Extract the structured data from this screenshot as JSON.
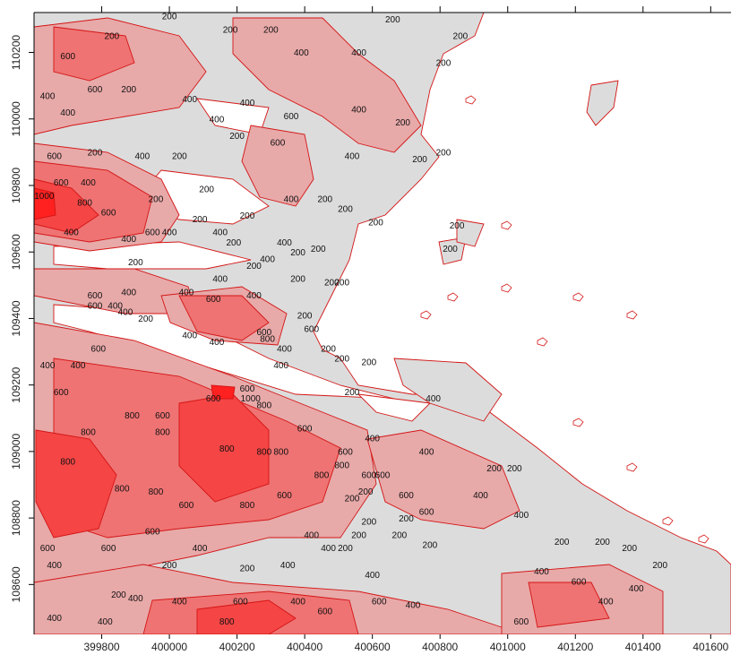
{
  "chart_data": {
    "type": "heatmap",
    "title": "",
    "xlabel": "",
    "ylabel": "",
    "xlim": [
      399600,
      401660
    ],
    "ylim": [
      108450,
      110320
    ],
    "x_ticks": [
      "399800",
      "400000",
      "400200",
      "400400",
      "400600",
      "400800",
      "401000",
      "401200",
      "401400",
      "401600"
    ],
    "y_ticks": [
      "108600",
      "108800",
      "109000",
      "109200",
      "109400",
      "109600",
      "109800",
      "110000",
      "110200"
    ],
    "contour_levels": [
      200,
      400,
      600,
      800,
      1000
    ],
    "contour_labels": [
      {
        "x": 399700,
        "y": 110180,
        "text": "600"
      },
      {
        "x": 399830,
        "y": 110240,
        "text": "200"
      },
      {
        "x": 400000,
        "y": 110300,
        "text": "200"
      },
      {
        "x": 400180,
        "y": 110260,
        "text": "200"
      },
      {
        "x": 400300,
        "y": 110260,
        "text": "200"
      },
      {
        "x": 400390,
        "y": 110190,
        "text": "400"
      },
      {
        "x": 400560,
        "y": 110190,
        "text": "400"
      },
      {
        "x": 400660,
        "y": 110290,
        "text": "200"
      },
      {
        "x": 400860,
        "y": 110240,
        "text": "200"
      },
      {
        "x": 400810,
        "y": 110160,
        "text": "200"
      },
      {
        "x": 399640,
        "y": 110060,
        "text": "400"
      },
      {
        "x": 399780,
        "y": 110080,
        "text": "600"
      },
      {
        "x": 399880,
        "y": 110080,
        "text": "200"
      },
      {
        "x": 400060,
        "y": 110050,
        "text": "400"
      },
      {
        "x": 400230,
        "y": 110040,
        "text": "400"
      },
      {
        "x": 400360,
        "y": 110000,
        "text": "600"
      },
      {
        "x": 400560,
        "y": 110020,
        "text": "400"
      },
      {
        "x": 400690,
        "y": 109980,
        "text": "200"
      },
      {
        "x": 399700,
        "y": 110010,
        "text": "400"
      },
      {
        "x": 400140,
        "y": 109990,
        "text": "400"
      },
      {
        "x": 400200,
        "y": 109940,
        "text": "200"
      },
      {
        "x": 400320,
        "y": 109920,
        "text": "600"
      },
      {
        "x": 400540,
        "y": 109880,
        "text": "400"
      },
      {
        "x": 400740,
        "y": 109870,
        "text": "200"
      },
      {
        "x": 400810,
        "y": 109890,
        "text": "200"
      },
      {
        "x": 399660,
        "y": 109880,
        "text": "600"
      },
      {
        "x": 399780,
        "y": 109890,
        "text": "200"
      },
      {
        "x": 399920,
        "y": 109880,
        "text": "400"
      },
      {
        "x": 400030,
        "y": 109880,
        "text": "200"
      },
      {
        "x": 399680,
        "y": 109800,
        "text": "600"
      },
      {
        "x": 399760,
        "y": 109800,
        "text": "400"
      },
      {
        "x": 400110,
        "y": 109780,
        "text": "200"
      },
      {
        "x": 399630,
        "y": 109760,
        "text": "1000"
      },
      {
        "x": 399750,
        "y": 109740,
        "text": "800"
      },
      {
        "x": 399820,
        "y": 109710,
        "text": "600"
      },
      {
        "x": 399960,
        "y": 109750,
        "text": "200"
      },
      {
        "x": 400360,
        "y": 109750,
        "text": "400"
      },
      {
        "x": 400460,
        "y": 109750,
        "text": "200"
      },
      {
        "x": 400520,
        "y": 109720,
        "text": "200"
      },
      {
        "x": 400090,
        "y": 109690,
        "text": "200"
      },
      {
        "x": 400230,
        "y": 109700,
        "text": "200"
      },
      {
        "x": 400610,
        "y": 109680,
        "text": "200"
      },
      {
        "x": 400850,
        "y": 109670,
        "text": "200"
      },
      {
        "x": 399710,
        "y": 109650,
        "text": "400"
      },
      {
        "x": 399880,
        "y": 109630,
        "text": "400"
      },
      {
        "x": 399950,
        "y": 109650,
        "text": "600"
      },
      {
        "x": 400000,
        "y": 109650,
        "text": "400"
      },
      {
        "x": 400150,
        "y": 109650,
        "text": "400"
      },
      {
        "x": 400190,
        "y": 109620,
        "text": "200"
      },
      {
        "x": 400340,
        "y": 109620,
        "text": "400"
      },
      {
        "x": 400380,
        "y": 109590,
        "text": "200"
      },
      {
        "x": 400440,
        "y": 109600,
        "text": "200"
      },
      {
        "x": 400830,
        "y": 109600,
        "text": "200"
      },
      {
        "x": 400290,
        "y": 109570,
        "text": "400"
      },
      {
        "x": 400250,
        "y": 109550,
        "text": "200"
      },
      {
        "x": 399900,
        "y": 109560,
        "text": "200"
      },
      {
        "x": 400150,
        "y": 109510,
        "text": "400"
      },
      {
        "x": 400380,
        "y": 109510,
        "text": "200"
      },
      {
        "x": 400480,
        "y": 109500,
        "text": "200"
      },
      {
        "x": 400510,
        "y": 109500,
        "text": "200"
      },
      {
        "x": 399780,
        "y": 109460,
        "text": "600"
      },
      {
        "x": 399880,
        "y": 109470,
        "text": "400"
      },
      {
        "x": 400050,
        "y": 109470,
        "text": "400"
      },
      {
        "x": 400130,
        "y": 109450,
        "text": "600"
      },
      {
        "x": 400250,
        "y": 109460,
        "text": "400"
      },
      {
        "x": 399780,
        "y": 109430,
        "text": "600"
      },
      {
        "x": 399840,
        "y": 109430,
        "text": "400"
      },
      {
        "x": 399870,
        "y": 109410,
        "text": "400"
      },
      {
        "x": 399930,
        "y": 109390,
        "text": "200"
      },
      {
        "x": 400400,
        "y": 109400,
        "text": "200"
      },
      {
        "x": 400060,
        "y": 109340,
        "text": "400"
      },
      {
        "x": 400140,
        "y": 109320,
        "text": "400"
      },
      {
        "x": 400280,
        "y": 109350,
        "text": "600"
      },
      {
        "x": 400290,
        "y": 109330,
        "text": "800"
      },
      {
        "x": 400420,
        "y": 109360,
        "text": "600"
      },
      {
        "x": 399790,
        "y": 109300,
        "text": "600"
      },
      {
        "x": 400340,
        "y": 109300,
        "text": "400"
      },
      {
        "x": 400470,
        "y": 109300,
        "text": "200"
      },
      {
        "x": 400510,
        "y": 109270,
        "text": "200"
      },
      {
        "x": 400590,
        "y": 109260,
        "text": "200"
      },
      {
        "x": 399640,
        "y": 109250,
        "text": "400"
      },
      {
        "x": 399730,
        "y": 109250,
        "text": "400"
      },
      {
        "x": 400330,
        "y": 109250,
        "text": "400"
      },
      {
        "x": 399680,
        "y": 109170,
        "text": "600"
      },
      {
        "x": 400230,
        "y": 109180,
        "text": "600"
      },
      {
        "x": 400130,
        "y": 109150,
        "text": "600"
      },
      {
        "x": 400240,
        "y": 109150,
        "text": "1000"
      },
      {
        "x": 400540,
        "y": 109170,
        "text": "200"
      },
      {
        "x": 400780,
        "y": 109150,
        "text": "400"
      },
      {
        "x": 399890,
        "y": 109100,
        "text": "800"
      },
      {
        "x": 399980,
        "y": 109100,
        "text": "600"
      },
      {
        "x": 400280,
        "y": 109130,
        "text": "800"
      },
      {
        "x": 399760,
        "y": 109050,
        "text": "800"
      },
      {
        "x": 399980,
        "y": 109050,
        "text": "800"
      },
      {
        "x": 400400,
        "y": 109060,
        "text": "600"
      },
      {
        "x": 400600,
        "y": 109030,
        "text": "400"
      },
      {
        "x": 400170,
        "y": 109000,
        "text": "800"
      },
      {
        "x": 400280,
        "y": 108990,
        "text": "800"
      },
      {
        "x": 400330,
        "y": 108990,
        "text": "800"
      },
      {
        "x": 400520,
        "y": 108990,
        "text": "600"
      },
      {
        "x": 400760,
        "y": 108990,
        "text": "400"
      },
      {
        "x": 400960,
        "y": 108940,
        "text": "200"
      },
      {
        "x": 401020,
        "y": 108940,
        "text": "200"
      },
      {
        "x": 399700,
        "y": 108960,
        "text": "800"
      },
      {
        "x": 400450,
        "y": 108920,
        "text": "800"
      },
      {
        "x": 400510,
        "y": 108950,
        "text": "800"
      },
      {
        "x": 400590,
        "y": 108920,
        "text": "600"
      },
      {
        "x": 400630,
        "y": 108920,
        "text": "600"
      },
      {
        "x": 399860,
        "y": 108880,
        "text": "800"
      },
      {
        "x": 399960,
        "y": 108870,
        "text": "800"
      },
      {
        "x": 400340,
        "y": 108860,
        "text": "600"
      },
      {
        "x": 400540,
        "y": 108850,
        "text": "200"
      },
      {
        "x": 400580,
        "y": 108870,
        "text": "200"
      },
      {
        "x": 400700,
        "y": 108860,
        "text": "600"
      },
      {
        "x": 400920,
        "y": 108860,
        "text": "400"
      },
      {
        "x": 400050,
        "y": 108830,
        "text": "600"
      },
      {
        "x": 400230,
        "y": 108830,
        "text": "800"
      },
      {
        "x": 400760,
        "y": 108810,
        "text": "600"
      },
      {
        "x": 400700,
        "y": 108790,
        "text": "200"
      },
      {
        "x": 401040,
        "y": 108800,
        "text": "400"
      },
      {
        "x": 400590,
        "y": 108780,
        "text": "200"
      },
      {
        "x": 399950,
        "y": 108750,
        "text": "600"
      },
      {
        "x": 400420,
        "y": 108740,
        "text": "400"
      },
      {
        "x": 400560,
        "y": 108740,
        "text": "200"
      },
      {
        "x": 400680,
        "y": 108740,
        "text": "200"
      },
      {
        "x": 401160,
        "y": 108720,
        "text": "200"
      },
      {
        "x": 401280,
        "y": 108720,
        "text": "200"
      },
      {
        "x": 399640,
        "y": 108700,
        "text": "600"
      },
      {
        "x": 399820,
        "y": 108700,
        "text": "600"
      },
      {
        "x": 400090,
        "y": 108700,
        "text": "400"
      },
      {
        "x": 400470,
        "y": 108700,
        "text": "400"
      },
      {
        "x": 400520,
        "y": 108700,
        "text": "200"
      },
      {
        "x": 400770,
        "y": 108710,
        "text": "200"
      },
      {
        "x": 401360,
        "y": 108700,
        "text": "200"
      },
      {
        "x": 399660,
        "y": 108650,
        "text": "400"
      },
      {
        "x": 400000,
        "y": 108650,
        "text": "200"
      },
      {
        "x": 400230,
        "y": 108640,
        "text": "200"
      },
      {
        "x": 400350,
        "y": 108650,
        "text": "400"
      },
      {
        "x": 401450,
        "y": 108650,
        "text": "200"
      },
      {
        "x": 400600,
        "y": 108620,
        "text": "400"
      },
      {
        "x": 401100,
        "y": 108630,
        "text": "400"
      },
      {
        "x": 401210,
        "y": 108600,
        "text": "600"
      },
      {
        "x": 401380,
        "y": 108580,
        "text": "400"
      },
      {
        "x": 399850,
        "y": 108560,
        "text": "200"
      },
      {
        "x": 399900,
        "y": 108550,
        "text": "400"
      },
      {
        "x": 400030,
        "y": 108540,
        "text": "400"
      },
      {
        "x": 400210,
        "y": 108540,
        "text": "600"
      },
      {
        "x": 400380,
        "y": 108540,
        "text": "400"
      },
      {
        "x": 400620,
        "y": 108540,
        "text": "600"
      },
      {
        "x": 400720,
        "y": 108530,
        "text": "400"
      },
      {
        "x": 400460,
        "y": 108510,
        "text": "600"
      },
      {
        "x": 399660,
        "y": 108490,
        "text": "400"
      },
      {
        "x": 399810,
        "y": 108480,
        "text": "400"
      },
      {
        "x": 400170,
        "y": 108480,
        "text": "800"
      },
      {
        "x": 401040,
        "y": 108480,
        "text": "600"
      },
      {
        "x": 401290,
        "y": 108540,
        "text": "400"
      }
    ],
    "fill_colors": {
      "below_200": "#ffffff",
      "200_400": "#dcdcdc",
      "400_600": "#e8a9a9",
      "600_800": "#ef7373",
      "800_1000": "#f54545",
      "above_1000": "#ff2020"
    },
    "contour_line_color": "#d41414",
    "grid": false
  }
}
